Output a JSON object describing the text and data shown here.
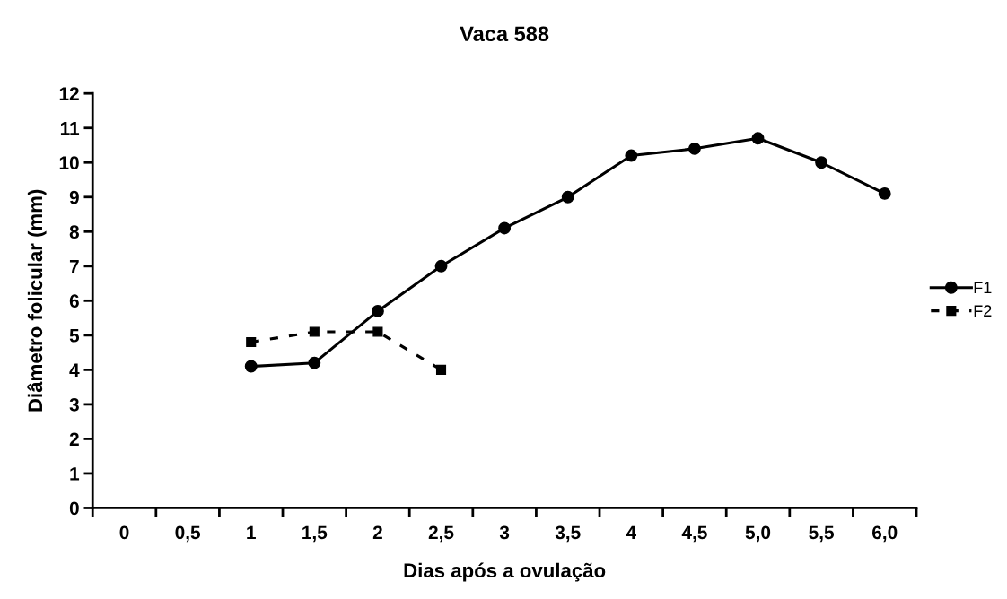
{
  "chart_data": {
    "type": "line",
    "title": "Vaca 588",
    "xlabel": "Dias após a ovulação",
    "ylabel": "Diâmetro folicular (mm)",
    "categories": [
      "0",
      "0,5",
      "1",
      "1,5",
      "2",
      "2,5",
      "3",
      "3,5",
      "4",
      "4,5",
      "5,0",
      "5,5",
      "6,0"
    ],
    "series": [
      {
        "name": "F1",
        "color": "#000000",
        "marker": "circle",
        "line_style": "solid",
        "values": [
          null,
          null,
          4.1,
          4.2,
          5.7,
          7.0,
          8.1,
          9.0,
          10.2,
          10.4,
          10.7,
          10.0,
          9.1
        ]
      },
      {
        "name": "F2",
        "color": "#000000",
        "marker": "square",
        "line_style": "dashed",
        "values": [
          null,
          null,
          4.8,
          5.1,
          5.1,
          4.0,
          null,
          null,
          null,
          null,
          null,
          null,
          null
        ]
      }
    ],
    "ylim": [
      0,
      12
    ],
    "yticks": [
      0,
      1,
      2,
      3,
      4,
      5,
      6,
      7,
      8,
      9,
      10,
      11,
      12
    ],
    "grid": false,
    "legend": "right"
  }
}
